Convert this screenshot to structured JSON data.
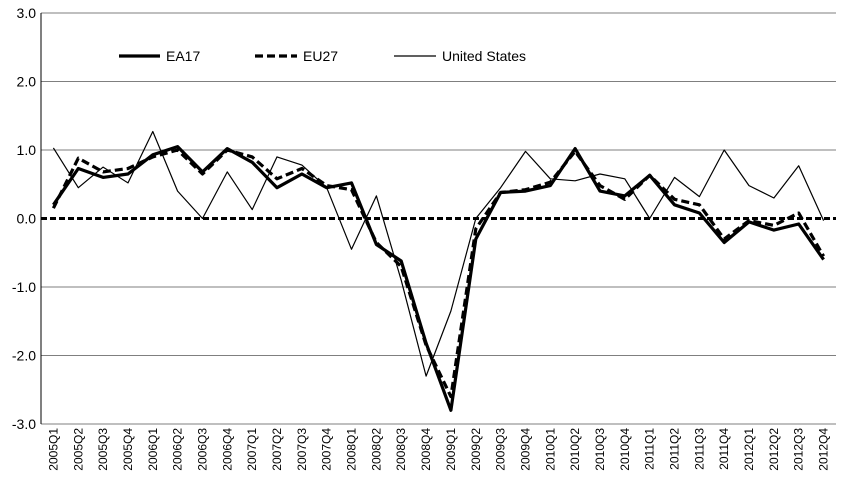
{
  "chart_data": {
    "type": "line",
    "title": "",
    "xlabel": "",
    "ylabel": "",
    "ylim": [
      -3.0,
      3.0
    ],
    "yticks": [
      "3.0",
      "2.0",
      "1.0",
      "0.0",
      "-1.0",
      "-2.0",
      "-3.0"
    ],
    "ytick_values": [
      3,
      2,
      1,
      0,
      -1,
      -2,
      -3
    ],
    "grid": "horizontal",
    "legend_position": "top-left",
    "categories": [
      "2005Q1",
      "2005Q2",
      "2005Q3",
      "2005Q4",
      "2006Q1",
      "2006Q2",
      "2006Q3",
      "2006Q4",
      "2007Q1",
      "2007Q2",
      "2007Q3",
      "2007Q4",
      "2008Q1",
      "2008Q2",
      "2008Q3",
      "2008Q4",
      "2009Q1",
      "2009Q2",
      "2009Q3",
      "2009Q4",
      "2010Q1",
      "2010Q2",
      "2010Q3",
      "2010Q4",
      "2011Q1",
      "2011Q2",
      "2011Q3",
      "2011Q4",
      "2012Q1",
      "2012Q2",
      "2012Q3",
      "2012Q4"
    ],
    "series": [
      {
        "name": "EA17",
        "style": "thick-solid",
        "color": "#000000",
        "values": [
          0.2,
          0.73,
          0.6,
          0.65,
          0.93,
          1.05,
          0.68,
          1.02,
          0.82,
          0.45,
          0.65,
          0.45,
          0.52,
          -0.38,
          -0.62,
          -1.82,
          -2.8,
          -0.3,
          0.38,
          0.4,
          0.48,
          1.02,
          0.4,
          0.33,
          0.63,
          0.2,
          0.08,
          -0.35,
          -0.05,
          -0.17,
          -0.08,
          -0.6
        ]
      },
      {
        "name": "EU27",
        "style": "thick-dashed",
        "color": "#000000",
        "values": [
          0.15,
          0.88,
          0.68,
          0.73,
          0.9,
          1.0,
          0.65,
          1.0,
          0.9,
          0.58,
          0.73,
          0.48,
          0.42,
          -0.35,
          -0.7,
          -1.85,
          -2.6,
          -0.15,
          0.38,
          0.42,
          0.53,
          0.98,
          0.48,
          0.28,
          0.63,
          0.28,
          0.2,
          -0.3,
          -0.03,
          -0.1,
          0.08,
          -0.55
        ]
      },
      {
        "name": "United States",
        "style": "thin-solid",
        "color": "#000000",
        "values": [
          1.03,
          0.45,
          0.75,
          0.52,
          1.27,
          0.4,
          0.0,
          0.68,
          0.13,
          0.9,
          0.78,
          0.45,
          -0.45,
          0.33,
          -0.9,
          -2.3,
          -1.35,
          0.0,
          0.45,
          0.98,
          0.58,
          0.55,
          0.65,
          0.58,
          0.0,
          0.6,
          0.32,
          1.0,
          0.48,
          0.3,
          0.77,
          -0.03
        ]
      }
    ]
  }
}
